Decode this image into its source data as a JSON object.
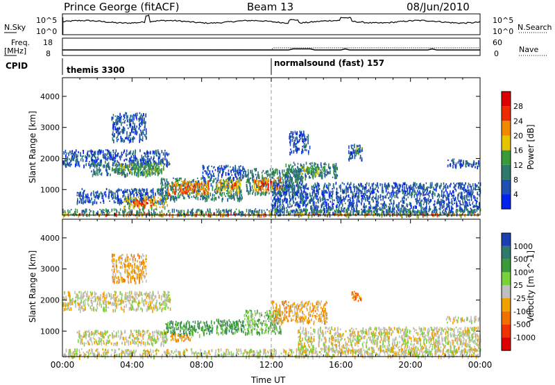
{
  "header": {
    "radar": "Prince George (fitACF)",
    "beam": "Beam 13",
    "date": "08/Jun/2010"
  },
  "strip_panel": {
    "left_label": "N.Sky",
    "left_ticks": [
      "10^5",
      "10^0"
    ],
    "right_ticks": [
      "10^5",
      "10^0"
    ],
    "right_label": "N.Search"
  },
  "freq_panel": {
    "left_label_1": "Freq.",
    "left_label_2": "[MHz]",
    "left_ticks": [
      "18",
      "8"
    ],
    "right_ticks": [
      "60",
      "0"
    ],
    "right_label": "Nave"
  },
  "cpid": {
    "label": "CPID",
    "segments": [
      {
        "name": "themis 3300",
        "start_hour": 0
      },
      {
        "name": "normalsound (fast) 157",
        "start_hour": 12
      }
    ]
  },
  "chart_data": [
    {
      "type": "heatmap",
      "title": "",
      "xlabel": "Time UT",
      "ylabel": "Slant Range [km]",
      "xlim": [
        0,
        24
      ],
      "ylim": [
        180,
        4600
      ],
      "x_ticks": [
        "00:00",
        "04:00",
        "08:00",
        "12:00",
        "16:00",
        "20:00",
        "00:00"
      ],
      "y_ticks": [
        1000,
        2000,
        3000,
        4000
      ],
      "colorbar": {
        "label": "Power [dB]",
        "ticks": [
          4,
          8,
          12,
          16,
          20,
          24,
          28
        ],
        "range": [
          0,
          30
        ],
        "colors": [
          "#0022ee",
          "#1f4fb0",
          "#2e7a6a",
          "#3a9a3a",
          "#e6c400",
          "#f08a00",
          "#ee2a00",
          "#dd0000"
        ]
      },
      "regions": [
        {
          "t0": 0.0,
          "t1": 6.2,
          "r0": 1800,
          "r1": 2300,
          "level": 1
        },
        {
          "t0": 1.6,
          "t1": 5.5,
          "r0": 1500,
          "r1": 1900,
          "level": 2
        },
        {
          "t0": 3.0,
          "t1": 5.8,
          "r0": 1550,
          "r1": 1850,
          "level": 3
        },
        {
          "t0": 2.8,
          "t1": 4.8,
          "r0": 2600,
          "r1": 3500,
          "level": 1
        },
        {
          "t0": 0.8,
          "t1": 6.0,
          "r0": 600,
          "r1": 1050,
          "level": 1
        },
        {
          "t0": 3.5,
          "t1": 6.0,
          "r0": 450,
          "r1": 800,
          "level": 4
        },
        {
          "t0": 4.0,
          "t1": 5.2,
          "r0": 500,
          "r1": 700,
          "level": 6
        },
        {
          "t0": 5.6,
          "t1": 10.3,
          "r0": 700,
          "r1": 1400,
          "level": 2
        },
        {
          "t0": 6.0,
          "t1": 8.4,
          "r0": 900,
          "r1": 1300,
          "level": 5
        },
        {
          "t0": 7.0,
          "t1": 7.6,
          "r0": 950,
          "r1": 1150,
          "level": 6
        },
        {
          "t0": 8.8,
          "t1": 10.2,
          "r0": 950,
          "r1": 1350,
          "level": 4
        },
        {
          "t0": 9.5,
          "t1": 10.0,
          "r0": 1100,
          "r1": 1250,
          "level": 6
        },
        {
          "t0": 8.0,
          "t1": 10.5,
          "r0": 1400,
          "r1": 1800,
          "level": 1
        },
        {
          "t0": 10.5,
          "t1": 13.8,
          "r0": 900,
          "r1": 1700,
          "level": 2
        },
        {
          "t0": 11.0,
          "t1": 12.6,
          "r0": 1000,
          "r1": 1400,
          "level": 5
        },
        {
          "t0": 11.4,
          "t1": 12.0,
          "r0": 1100,
          "r1": 1300,
          "level": 7
        },
        {
          "t0": 12.8,
          "t1": 15.8,
          "r0": 1400,
          "r1": 1900,
          "level": 2
        },
        {
          "t0": 13.6,
          "t1": 15.0,
          "r0": 1500,
          "r1": 1750,
          "level": 3
        },
        {
          "t0": 12.0,
          "t1": 24.0,
          "r0": 300,
          "r1": 1250,
          "level": 1
        },
        {
          "t0": 13.0,
          "t1": 14.2,
          "r0": 2200,
          "r1": 2900,
          "level": 1
        },
        {
          "t0": 16.4,
          "t1": 17.2,
          "r0": 2000,
          "r1": 2500,
          "level": 1
        },
        {
          "t0": 16.8,
          "t1": 17.2,
          "r0": 2200,
          "r1": 2400,
          "level": 3
        },
        {
          "t0": 22.0,
          "t1": 24.0,
          "r0": 1750,
          "r1": 2000,
          "level": 1
        },
        {
          "t0": 0.0,
          "t1": 24.0,
          "r0": 200,
          "r1": 400,
          "level": 2
        },
        {
          "t0": 0.0,
          "t1": 24.0,
          "r0": 200,
          "r1": 260,
          "level": 5
        }
      ]
    },
    {
      "type": "heatmap",
      "title": "",
      "xlabel": "Time UT",
      "ylabel": "Slant Range [km]",
      "xlim": [
        0,
        24
      ],
      "ylim": [
        180,
        4600
      ],
      "x_ticks": [
        "00:00",
        "04:00",
        "08:00",
        "12:00",
        "16:00",
        "20:00",
        "00:00"
      ],
      "y_ticks": [
        1000,
        2000,
        3000,
        4000
      ],
      "colorbar": {
        "label": "Velocity [m s^-1]",
        "ticks": [
          "1000",
          "500",
          "100",
          "25",
          "-25",
          "-100",
          "-500",
          "-1000"
        ],
        "colors": [
          "#1a3fb0",
          "#2e7a6a",
          "#3a9a3a",
          "#7ad13a",
          "#bfbfbf",
          "#f0a000",
          "#f07000",
          "#ee3300",
          "#dd0000"
        ]
      },
      "regions": [
        {
          "t0": 0.0,
          "t1": 6.2,
          "r0": 1700,
          "r1": 2300,
          "level": 4
        },
        {
          "t0": 2.8,
          "t1": 4.8,
          "r0": 2600,
          "r1": 3500,
          "level": 5
        },
        {
          "t0": 0.8,
          "t1": 6.0,
          "r0": 600,
          "r1": 1050,
          "level": 4
        },
        {
          "t0": 5.8,
          "t1": 8.6,
          "r0": 900,
          "r1": 1350,
          "level": 2
        },
        {
          "t0": 6.2,
          "t1": 7.4,
          "r0": 700,
          "r1": 950,
          "level": 5
        },
        {
          "t0": 8.6,
          "t1": 10.4,
          "r0": 950,
          "r1": 1400,
          "level": 2
        },
        {
          "t0": 10.4,
          "t1": 12.6,
          "r0": 950,
          "r1": 1700,
          "level": 3
        },
        {
          "t0": 12.0,
          "t1": 15.2,
          "r0": 1300,
          "r1": 2000,
          "level": 5
        },
        {
          "t0": 16.6,
          "t1": 17.2,
          "r0": 2000,
          "r1": 2300,
          "level": 6
        },
        {
          "t0": 13.5,
          "t1": 24.0,
          "r0": 350,
          "r1": 1150,
          "level": 4
        },
        {
          "t0": 0.0,
          "t1": 24.0,
          "r0": 200,
          "r1": 450,
          "level": 4
        },
        {
          "t0": 22.0,
          "t1": 24.0,
          "r0": 1300,
          "r1": 1500,
          "level": 4
        }
      ]
    }
  ]
}
